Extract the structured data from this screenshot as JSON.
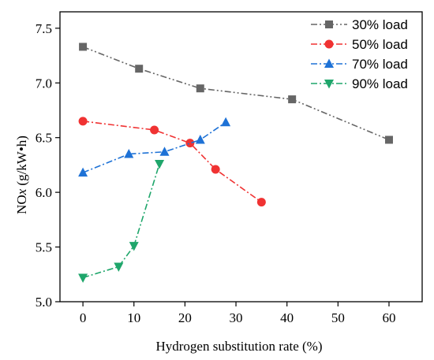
{
  "chart_data": {
    "type": "line",
    "xlabel": "Hydrogen substitution rate (%)",
    "ylabel_prefix": "NO",
    "ylabel_italic": "x",
    "ylabel_suffix": " (g/kW•h)",
    "xlim": [
      -4.5,
      66.5
    ],
    "ylim": [
      5.0,
      7.65
    ],
    "xticks": [
      0,
      10,
      20,
      30,
      40,
      50,
      60
    ],
    "yticks": [
      5.0,
      5.5,
      6.0,
      6.5,
      7.0,
      7.5
    ],
    "xtick_labels": [
      "0",
      "10",
      "20",
      "30",
      "40",
      "50",
      "60"
    ],
    "ytick_labels": [
      "5.0",
      "5.5",
      "6.0",
      "6.5",
      "7.0",
      "7.5"
    ],
    "grid": false,
    "legend_position": "top-right",
    "series": [
      {
        "name": "30% load",
        "color": "#666666",
        "marker": "square",
        "dash": "dash-dot-dot",
        "x": [
          0,
          11,
          23,
          41,
          60
        ],
        "y": [
          7.33,
          7.13,
          6.95,
          6.85,
          6.48
        ]
      },
      {
        "name": "50% load",
        "color": "#f03232",
        "marker": "circle",
        "dash": "dash-dot",
        "x": [
          0,
          14,
          21,
          26,
          35
        ],
        "y": [
          6.65,
          6.57,
          6.45,
          6.21,
          5.91
        ]
      },
      {
        "name": "70% load",
        "color": "#1e72d6",
        "marker": "triangle-up",
        "dash": "dash-dot",
        "x": [
          0,
          9,
          16,
          23,
          28
        ],
        "y": [
          6.18,
          6.35,
          6.37,
          6.48,
          6.64
        ]
      },
      {
        "name": "90% load",
        "color": "#1fa66b",
        "marker": "triangle-down",
        "dash": "dash-dot",
        "x": [
          0,
          7,
          10,
          15
        ],
        "y": [
          5.22,
          5.32,
          5.51,
          6.26
        ]
      }
    ]
  }
}
